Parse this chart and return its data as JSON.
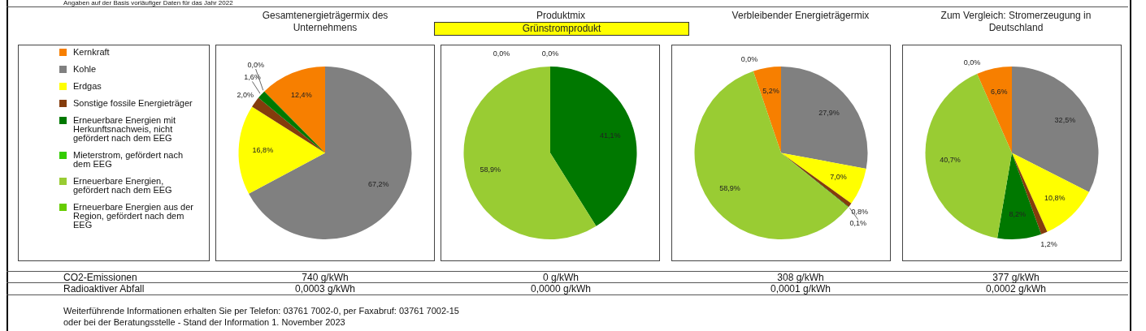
{
  "chart_data": [
    {
      "type": "pie",
      "title": "Gesamtenergieträgermix des Unternehmens",
      "legend": "left",
      "categories": [
        "Kernkraft",
        "Kohle",
        "Erdgas",
        "Sonstige fossile Energieträger",
        "Erneuerbare Energien mit Herkunftsnachweis, nicht gefördert nach dem EEG",
        "Mieterstrom, gefördert nach dem EEG",
        "Erneuerbare Energien, gefördert nach dem EEG",
        "Erneuerbare Energien aus der Region, gefördert nach dem EEG"
      ],
      "values": [
        12.4,
        67.2,
        16.8,
        2.0,
        1.6,
        0.0,
        0,
        0
      ],
      "value_labels": [
        "12,4%",
        "67,2%",
        "16,8%",
        "2,0%",
        "1,6%",
        null,
        null,
        "0,0%"
      ],
      "colors": [
        "#f77f00",
        "#808080",
        "#ffff00",
        "#843c0c",
        "#007800",
        "#33cc00",
        "#99cc33",
        "#66cc00"
      ],
      "annotations": [
        "740 g/kWh",
        "0,0003 g/kWh"
      ]
    },
    {
      "type": "pie",
      "title": "Produktmix",
      "subtitle": "Grünstromprodukt",
      "categories": [
        null,
        null,
        null,
        null,
        null,
        null,
        null,
        null
      ],
      "values": [
        0,
        0,
        0,
        0,
        41.1,
        0.0,
        58.9,
        0.0
      ],
      "value_labels": [
        "0,0%",
        null,
        null,
        null,
        "41,1%",
        null,
        "58,9%",
        "0,0%"
      ],
      "colors": [
        "#f77f00",
        "#808080",
        "#ffff00",
        "#843c0c",
        "#007800",
        "#33cc00",
        "#99cc33",
        "#66cc00"
      ],
      "annotations": [
        "0 g/kWh",
        "0,0000 g/kWh"
      ]
    },
    {
      "type": "pie",
      "title": "Verbleibender Energieträgermix",
      "categories": [
        null,
        null,
        null,
        null,
        null,
        null,
        null,
        null
      ],
      "values": [
        5.2,
        27.9,
        7.0,
        0.8,
        0.1,
        0.0,
        58.9,
        0
      ],
      "value_labels": [
        "5,2%",
        "27,9%",
        "7,0%",
        "0,8%",
        "0,1%",
        null,
        "58,9%",
        "0,0%"
      ],
      "colors": [
        "#f77f00",
        "#808080",
        "#ffff00",
        "#843c0c",
        "#007800",
        "#33cc00",
        "#99cc33",
        "#66cc00"
      ],
      "annotations": [
        "308 g/kWh",
        "0,0001 g/kWh"
      ]
    },
    {
      "type": "pie",
      "title": "Zum Vergleich: Stromerzeugung in Deutschland",
      "categories": [
        null,
        null,
        null,
        null,
        null,
        null,
        null,
        null
      ],
      "values": [
        6.6,
        32.5,
        10.8,
        1.2,
        8.2,
        0.0,
        40.7,
        0
      ],
      "value_labels": [
        "6,6%",
        "32,5%",
        "10,8%",
        "1,2%",
        "8,2%",
        null,
        "40,7%",
        "0,0%"
      ],
      "colors": [
        "#f77f00",
        "#808080",
        "#ffff00",
        "#843c0c",
        "#007800",
        "#33cc00",
        "#99cc33",
        "#66cc00"
      ],
      "annotations": [
        "377 g/kWh",
        "0,0002 g/kWh"
      ]
    },
    {
      "type": "other",
      "annotations": [
        "Angaben auf der Basis vorläufiger Daten für das Jahr 2022",
        "CO2-Emissionen",
        "Radioaktiver Abfall",
        "Weiterführende Informationen erhalten Sie per Telefon: 03761 7002-0, per Faxabruf: 03761 7002-15",
        "oder bei der Beratungsstelle - Stand der Information 1. November 2023"
      ]
    }
  ]
}
